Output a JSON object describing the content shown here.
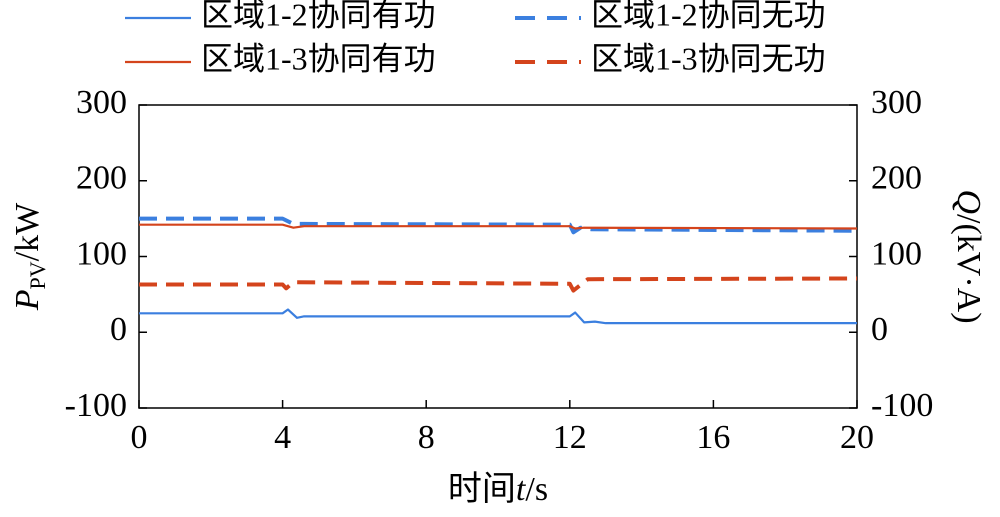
{
  "chart_data": {
    "type": "line",
    "xlim": [
      0,
      20
    ],
    "xticks": [
      0,
      4,
      8,
      12,
      16,
      20
    ],
    "ylim": [
      -100,
      300
    ],
    "yticks": [
      -100,
      0,
      100,
      200,
      300
    ],
    "y2lim": [
      -100,
      300
    ],
    "y2ticks": [
      -100,
      0,
      100,
      200,
      300
    ],
    "xlabel": {
      "text": "时间",
      "symbol": "t",
      "unit": "/s"
    },
    "ylabel": {
      "symbol": "P",
      "subscript": "PV",
      "unit": "/kW"
    },
    "y2label": {
      "symbol": "Q",
      "unit": "/(kV·A)"
    },
    "series": [
      {
        "name": "区域1-2协同有功",
        "color": "#3b7fdf",
        "linestyle": "solid",
        "x": [
          0,
          4,
          4.15,
          4.4,
          4.6,
          12,
          12.15,
          12.4,
          12.7,
          13,
          20
        ],
        "values": [
          25,
          25,
          30,
          19,
          21,
          21,
          26,
          13,
          14,
          12,
          12
        ]
      },
      {
        "name": "区域1-2协同无功",
        "color": "#3b7fdf",
        "linestyle": "dashed",
        "axis": "y2",
        "x": [
          0,
          4,
          4.3,
          4.6,
          12,
          12.1,
          12.3,
          12.6,
          20
        ],
        "values": [
          150,
          150,
          143,
          143,
          142,
          132,
          138,
          136,
          134
        ]
      },
      {
        "name": "区域1-3协同有功",
        "color": "#d4441c",
        "linestyle": "solid",
        "x": [
          0,
          4,
          4.3,
          4.6,
          12,
          12.15,
          12.4,
          20
        ],
        "values": [
          142,
          142,
          138,
          140,
          140,
          137,
          138,
          137
        ]
      },
      {
        "name": "区域1-3协同无功",
        "color": "#d4441c",
        "linestyle": "dashed",
        "axis": "y2",
        "x": [
          0,
          4,
          4.1,
          4.3,
          12,
          12.1,
          12.5,
          20
        ],
        "values": [
          63,
          63,
          58,
          66,
          64,
          55,
          70,
          71
        ]
      }
    ]
  }
}
